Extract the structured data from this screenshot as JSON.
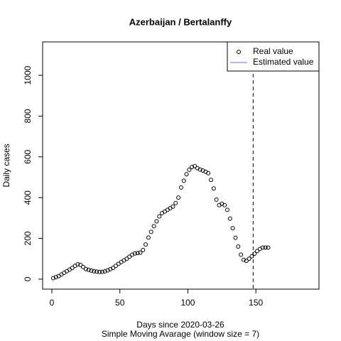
{
  "chart_data": {
    "type": "scatter",
    "title": "Azerbaijan / Bertalanffy",
    "x_label": "Days since 2020-03-26",
    "subtitle": "Simple Moving Avarage (window size = 7)",
    "y_label": "Daily cases",
    "xlim": [
      -6.8,
      196.4
    ],
    "ylim": [
      -49,
      1164
    ],
    "xticks": [
      0,
      50,
      100,
      150
    ],
    "yticks": [
      0,
      200,
      400,
      600,
      800,
      1000
    ],
    "series": [
      {
        "name": "Real value",
        "color": "#000000",
        "x": [
          1,
          3,
          5,
          7,
          9,
          11,
          13,
          15,
          17,
          19,
          21,
          23,
          25,
          27,
          29,
          31,
          33,
          35,
          37,
          39,
          41,
          43,
          45,
          47,
          49,
          51,
          53,
          55,
          57,
          59,
          61,
          63,
          65,
          67,
          69,
          71,
          73,
          75,
          77,
          79,
          81,
          83,
          85,
          87,
          89,
          91,
          93,
          95,
          97,
          99,
          101,
          103,
          105,
          107,
          109,
          111,
          113,
          115,
          117,
          119,
          121,
          123,
          125,
          127,
          129,
          131,
          133,
          135,
          137,
          139,
          141,
          143,
          145,
          147,
          149,
          151,
          153,
          155,
          157,
          159
        ],
        "values": [
          5,
          10,
          15,
          23,
          31,
          39,
          47,
          55,
          65,
          73,
          70,
          60,
          50,
          46,
          42,
          39,
          37,
          35,
          36,
          38,
          43,
          49,
          55,
          65,
          75,
          84,
          92,
          100,
          110,
          120,
          126,
          128,
          130,
          143,
          170,
          204,
          232,
          260,
          284,
          308,
          324,
          332,
          340,
          348,
          356,
          373,
          400,
          450,
          483,
          515,
          537,
          550,
          555,
          545,
          538,
          533,
          527,
          520,
          487,
          445,
          390,
          363,
          370,
          363,
          340,
          297,
          250,
          203,
          160,
          120,
          95,
          90,
          100,
          112,
          125,
          138,
          148,
          155,
          155,
          155
        ]
      }
    ],
    "legend": {
      "position": "topright",
      "items": [
        {
          "name": "Real value",
          "symbol": "circle",
          "color": "#000000"
        },
        {
          "name": "Estimated value",
          "symbol": "line",
          "color": "#9966cc"
        }
      ]
    },
    "vline": 148
  }
}
